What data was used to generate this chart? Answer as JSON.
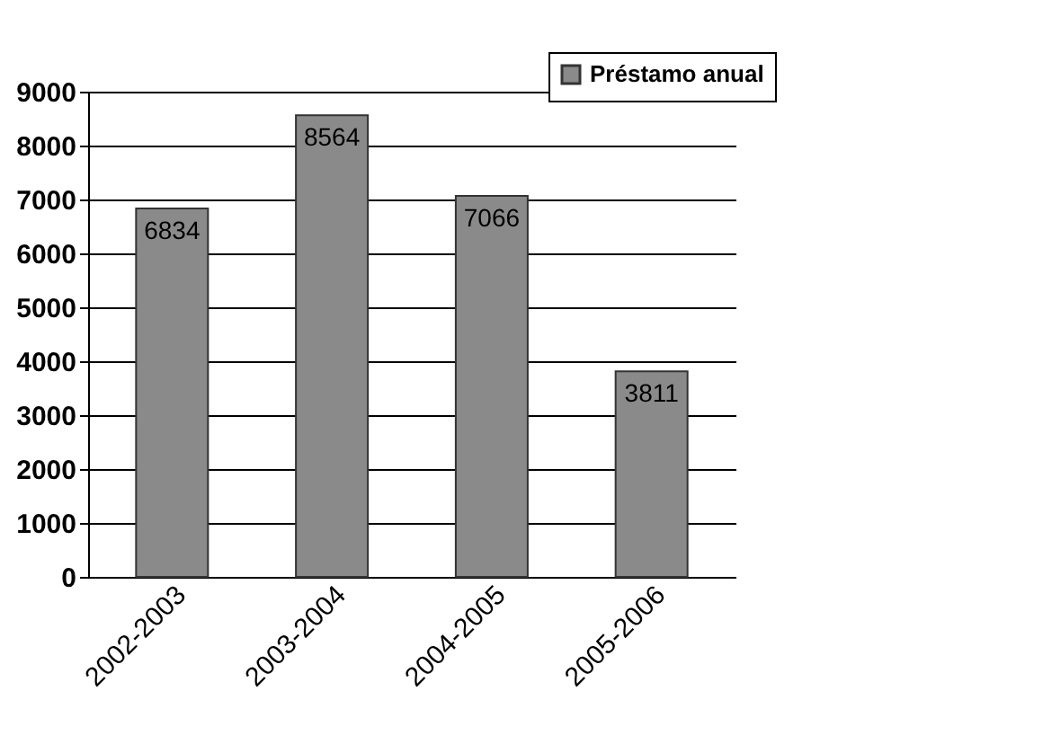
{
  "chart_data": {
    "type": "bar",
    "categories": [
      "2002-2003",
      "2003-2004",
      "2004-2005",
      "2005-2006"
    ],
    "series": [
      {
        "name": "Préstamo anual",
        "color": "#8a8a8a",
        "values": [
          6834,
          8564,
          7066,
          3811
        ]
      }
    ],
    "ylim": [
      0,
      9000
    ],
    "yticks": [
      0,
      1000,
      2000,
      3000,
      4000,
      5000,
      6000,
      7000,
      8000,
      9000
    ],
    "grid": "y",
    "legend": "top right",
    "data_labels": true
  }
}
